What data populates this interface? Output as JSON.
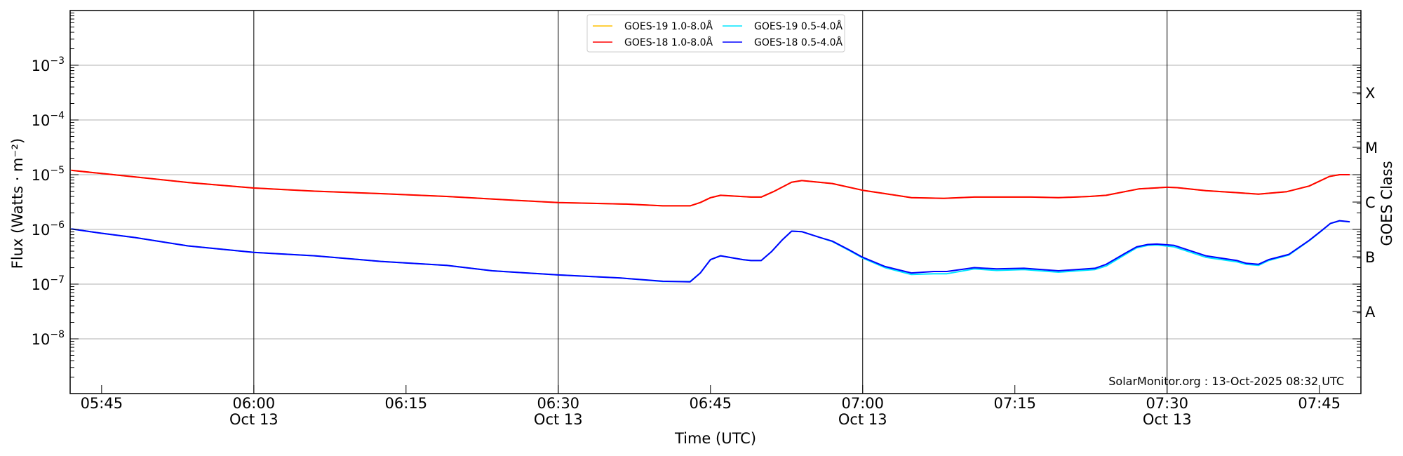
{
  "chart_data": {
    "type": "line",
    "title": "",
    "xlabel": "Time (UTC)",
    "ylabel": "Flux (Watts · m⁻²)",
    "ylabel_right": "GOES Class",
    "yscale": "log",
    "ylim": [
      1e-09,
      0.01
    ],
    "xlim": [
      "05:42",
      "07:49"
    ],
    "grid": "horizontal at decades",
    "legend_placement": "top-center",
    "y_ticks": [
      {
        "value": 0.001,
        "base": "10",
        "exp": "−3"
      },
      {
        "value": 0.0001,
        "base": "10",
        "exp": "−4"
      },
      {
        "value": 1e-05,
        "base": "10",
        "exp": "−5"
      },
      {
        "value": 1e-06,
        "base": "10",
        "exp": "−6"
      },
      {
        "value": 1e-07,
        "base": "10",
        "exp": "−7"
      },
      {
        "value": 1e-08,
        "base": "10",
        "exp": "−8"
      }
    ],
    "x_ticks": [
      {
        "time": "05:45",
        "label": "05:45",
        "date": ""
      },
      {
        "time": "06:00",
        "label": "06:00",
        "date": "Oct 13"
      },
      {
        "time": "06:15",
        "label": "06:15",
        "date": ""
      },
      {
        "time": "06:30",
        "label": "06:30",
        "date": "Oct 13"
      },
      {
        "time": "06:45",
        "label": "06:45",
        "date": ""
      },
      {
        "time": "07:00",
        "label": "07:00",
        "date": "Oct 13"
      },
      {
        "time": "07:15",
        "label": "07:15",
        "date": ""
      },
      {
        "time": "07:30",
        "label": "07:30",
        "date": "Oct 13"
      },
      {
        "time": "07:45",
        "label": "07:45",
        "date": ""
      }
    ],
    "class_ticks": [
      {
        "label": "X",
        "value": 0.000316
      },
      {
        "label": "M",
        "value": 3.16e-05
      },
      {
        "label": "C",
        "value": 3.16e-06
      },
      {
        "label": "B",
        "value": 3.16e-07
      },
      {
        "label": "A",
        "value": 3.16e-08
      }
    ],
    "day_lines": [
      "06:00",
      "06:30",
      "07:00",
      "07:30"
    ],
    "series": [
      {
        "name": "GOES-19 1.0-8.0Å",
        "color": "#ffc000",
        "points": [
          [
            "05:42",
            1.2e-05
          ],
          [
            "05:45",
            1.05e-05
          ],
          [
            "05:49",
            8.8e-06
          ],
          [
            "05:53.5",
            7.2e-06
          ],
          [
            "06:00",
            5.7e-06
          ],
          [
            "06:06",
            5e-06
          ],
          [
            "06:12.5",
            4.5e-06
          ],
          [
            "06:19",
            4e-06
          ],
          [
            "06:25.7",
            3.4e-06
          ],
          [
            "06:30",
            3.1e-06
          ],
          [
            "06:36.7",
            2.9e-06
          ],
          [
            "06:40.3",
            2.7e-06
          ],
          [
            "06:43",
            2.7e-06
          ],
          [
            "06:44",
            3.1e-06
          ],
          [
            "06:45",
            3.8e-06
          ],
          [
            "06:46",
            4.2e-06
          ],
          [
            "06:49",
            3.9e-06
          ],
          [
            "06:50",
            3.9e-06
          ],
          [
            "06:51.2",
            4.9e-06
          ],
          [
            "06:53",
            7.3e-06
          ],
          [
            "06:54",
            7.8e-06
          ],
          [
            "06:57",
            6.9e-06
          ],
          [
            "07:00",
            5.2e-06
          ],
          [
            "07:02.2",
            4.5e-06
          ],
          [
            "07:04.8",
            3.8e-06
          ],
          [
            "07:08",
            3.7e-06
          ],
          [
            "07:11",
            3.9e-06
          ],
          [
            "07:14",
            3.9e-06
          ],
          [
            "07:16.6",
            3.9e-06
          ],
          [
            "07:19.3",
            3.8e-06
          ],
          [
            "07:22.4",
            4e-06
          ],
          [
            "07:24",
            4.2e-06
          ],
          [
            "07:27.2",
            5.5e-06
          ],
          [
            "07:30",
            5.9e-06
          ],
          [
            "07:31",
            5.8e-06
          ],
          [
            "07:33.8",
            5.1e-06
          ],
          [
            "07:36.9",
            4.7e-06
          ],
          [
            "07:39",
            4.4e-06
          ],
          [
            "07:41.8",
            4.9e-06
          ],
          [
            "07:44",
            6.2e-06
          ],
          [
            "07:46",
            9.3e-06
          ],
          [
            "07:47",
            1e-05
          ],
          [
            "07:48",
            1e-05
          ]
        ]
      },
      {
        "name": "GOES-18 1.0-8.0Å",
        "color": "#ff0000",
        "points": [
          [
            "05:42",
            1.2e-05
          ],
          [
            "05:45",
            1.05e-05
          ],
          [
            "05:49",
            8.8e-06
          ],
          [
            "05:53.5",
            7.2e-06
          ],
          [
            "06:00",
            5.7e-06
          ],
          [
            "06:06",
            5e-06
          ],
          [
            "06:12.5",
            4.5e-06
          ],
          [
            "06:19",
            4e-06
          ],
          [
            "06:25.7",
            3.4e-06
          ],
          [
            "06:30",
            3.1e-06
          ],
          [
            "06:36.7",
            2.9e-06
          ],
          [
            "06:40.3",
            2.7e-06
          ],
          [
            "06:43",
            2.7e-06
          ],
          [
            "06:44",
            3.1e-06
          ],
          [
            "06:45",
            3.8e-06
          ],
          [
            "06:46",
            4.2e-06
          ],
          [
            "06:49",
            3.9e-06
          ],
          [
            "06:50",
            3.9e-06
          ],
          [
            "06:51.2",
            4.9e-06
          ],
          [
            "06:53",
            7.3e-06
          ],
          [
            "06:54",
            7.8e-06
          ],
          [
            "06:57",
            6.9e-06
          ],
          [
            "07:00",
            5.2e-06
          ],
          [
            "07:02.2",
            4.5e-06
          ],
          [
            "07:04.8",
            3.8e-06
          ],
          [
            "07:08",
            3.7e-06
          ],
          [
            "07:11",
            3.9e-06
          ],
          [
            "07:14",
            3.9e-06
          ],
          [
            "07:16.6",
            3.9e-06
          ],
          [
            "07:19.3",
            3.8e-06
          ],
          [
            "07:22.4",
            4e-06
          ],
          [
            "07:24",
            4.2e-06
          ],
          [
            "07:27.2",
            5.5e-06
          ],
          [
            "07:30",
            5.9e-06
          ],
          [
            "07:31",
            5.8e-06
          ],
          [
            "07:33.8",
            5.1e-06
          ],
          [
            "07:36.9",
            4.7e-06
          ],
          [
            "07:39",
            4.4e-06
          ],
          [
            "07:41.8",
            4.9e-06
          ],
          [
            "07:44",
            6.2e-06
          ],
          [
            "07:46",
            9.3e-06
          ],
          [
            "07:47",
            1e-05
          ],
          [
            "07:48",
            1e-05
          ]
        ]
      },
      {
        "name": "GOES-19 0.5-4.0Å",
        "color": "#00e5ff",
        "points": [
          [
            "05:42",
            1.02e-06
          ],
          [
            "05:45",
            8.5e-07
          ],
          [
            "05:48.3",
            7.1e-07
          ],
          [
            "05:53.5",
            5e-07
          ],
          [
            "06:00",
            3.8e-07
          ],
          [
            "06:06",
            3.3e-07
          ],
          [
            "06:12.5",
            2.6e-07
          ],
          [
            "06:19",
            2.2e-07
          ],
          [
            "06:23.5",
            1.75e-07
          ],
          [
            "06:30",
            1.47e-07
          ],
          [
            "06:36",
            1.3e-07
          ],
          [
            "06:40.3",
            1.12e-07
          ],
          [
            "06:43",
            1.12e-07
          ],
          [
            "06:44",
            1.6e-07
          ],
          [
            "06:45",
            2.8e-07
          ],
          [
            "06:46",
            3.3e-07
          ],
          [
            "06:48.2",
            2.8e-07
          ],
          [
            "06:49",
            2.7e-07
          ],
          [
            "06:50",
            2.7e-07
          ],
          [
            "06:51",
            3.9e-07
          ],
          [
            "06:52.1",
            6.5e-07
          ],
          [
            "06:53",
            9.3e-07
          ],
          [
            "06:54",
            9.1e-07
          ],
          [
            "06:55.8",
            7.1e-07
          ],
          [
            "06:57",
            6e-07
          ],
          [
            "06:58.7",
            4.1e-07
          ],
          [
            "07:00",
            3e-07
          ],
          [
            "07:02.2",
            2e-07
          ],
          [
            "07:04.8",
            1.5e-07
          ],
          [
            "07:07",
            1.55e-07
          ],
          [
            "07:08.3",
            1.55e-07
          ],
          [
            "07:11",
            1.9e-07
          ],
          [
            "07:13.2",
            1.78e-07
          ],
          [
            "07:15.9",
            1.85e-07
          ],
          [
            "07:19.3",
            1.65e-07
          ],
          [
            "07:22.9",
            1.85e-07
          ],
          [
            "07:24",
            2.15e-07
          ],
          [
            "07:25.9",
            3.5e-07
          ],
          [
            "07:27",
            4.6e-07
          ],
          [
            "07:28.1",
            5.1e-07
          ],
          [
            "07:29",
            5.2e-07
          ],
          [
            "07:30.7",
            4.8e-07
          ],
          [
            "07:33.8",
            3.1e-07
          ],
          [
            "07:36.9",
            2.55e-07
          ],
          [
            "07:37.8",
            2.3e-07
          ],
          [
            "07:39",
            2.2e-07
          ],
          [
            "07:40",
            2.7e-07
          ],
          [
            "07:42",
            3.4e-07
          ],
          [
            "07:44",
            6.2e-07
          ],
          [
            "07:45.1",
            9e-07
          ],
          [
            "07:46.1",
            1.28e-06
          ],
          [
            "07:47",
            1.43e-06
          ],
          [
            "07:48",
            1.37e-06
          ]
        ]
      },
      {
        "name": "GOES-18 0.5-4.0Å",
        "color": "#0000ff",
        "points": [
          [
            "05:42",
            1.02e-06
          ],
          [
            "05:45",
            8.5e-07
          ],
          [
            "05:48.3",
            7.1e-07
          ],
          [
            "05:53.5",
            5e-07
          ],
          [
            "06:00",
            3.8e-07
          ],
          [
            "06:06",
            3.3e-07
          ],
          [
            "06:12.5",
            2.6e-07
          ],
          [
            "06:19",
            2.2e-07
          ],
          [
            "06:23.5",
            1.75e-07
          ],
          [
            "06:30",
            1.47e-07
          ],
          [
            "06:36",
            1.3e-07
          ],
          [
            "06:40.3",
            1.13e-07
          ],
          [
            "06:43",
            1.1e-07
          ],
          [
            "06:44",
            1.6e-07
          ],
          [
            "06:45",
            2.8e-07
          ],
          [
            "06:46",
            3.3e-07
          ],
          [
            "06:48.2",
            2.8e-07
          ],
          [
            "06:49",
            2.7e-07
          ],
          [
            "06:50",
            2.7e-07
          ],
          [
            "06:51",
            3.9e-07
          ],
          [
            "06:52.1",
            6.5e-07
          ],
          [
            "06:53",
            9.3e-07
          ],
          [
            "06:54",
            9.1e-07
          ],
          [
            "06:55.8",
            7.1e-07
          ],
          [
            "06:57",
            6.1e-07
          ],
          [
            "06:58.7",
            4.2e-07
          ],
          [
            "07:00",
            3.1e-07
          ],
          [
            "07:02.2",
            2.1e-07
          ],
          [
            "07:04.8",
            1.6e-07
          ],
          [
            "07:07",
            1.7e-07
          ],
          [
            "07:08.3",
            1.7e-07
          ],
          [
            "07:11",
            2e-07
          ],
          [
            "07:13.2",
            1.9e-07
          ],
          [
            "07:15.9",
            1.95e-07
          ],
          [
            "07:19.3",
            1.75e-07
          ],
          [
            "07:22.9",
            1.95e-07
          ],
          [
            "07:24",
            2.3e-07
          ],
          [
            "07:25.9",
            3.7e-07
          ],
          [
            "07:27",
            4.8e-07
          ],
          [
            "07:28.1",
            5.3e-07
          ],
          [
            "07:29",
            5.4e-07
          ],
          [
            "07:30.7",
            5.1e-07
          ],
          [
            "07:33.8",
            3.3e-07
          ],
          [
            "07:36.9",
            2.7e-07
          ],
          [
            "07:37.8",
            2.4e-07
          ],
          [
            "07:39",
            2.3e-07
          ],
          [
            "07:40",
            2.8e-07
          ],
          [
            "07:42",
            3.5e-07
          ],
          [
            "07:44",
            6.3e-07
          ],
          [
            "07:45.1",
            9.1e-07
          ],
          [
            "07:46.1",
            1.29e-06
          ],
          [
            "07:47",
            1.44e-06
          ],
          [
            "07:48",
            1.38e-06
          ]
        ]
      }
    ],
    "annotation": "SolarMonitor.org : 13-Oct-2025 08:32 UTC"
  }
}
